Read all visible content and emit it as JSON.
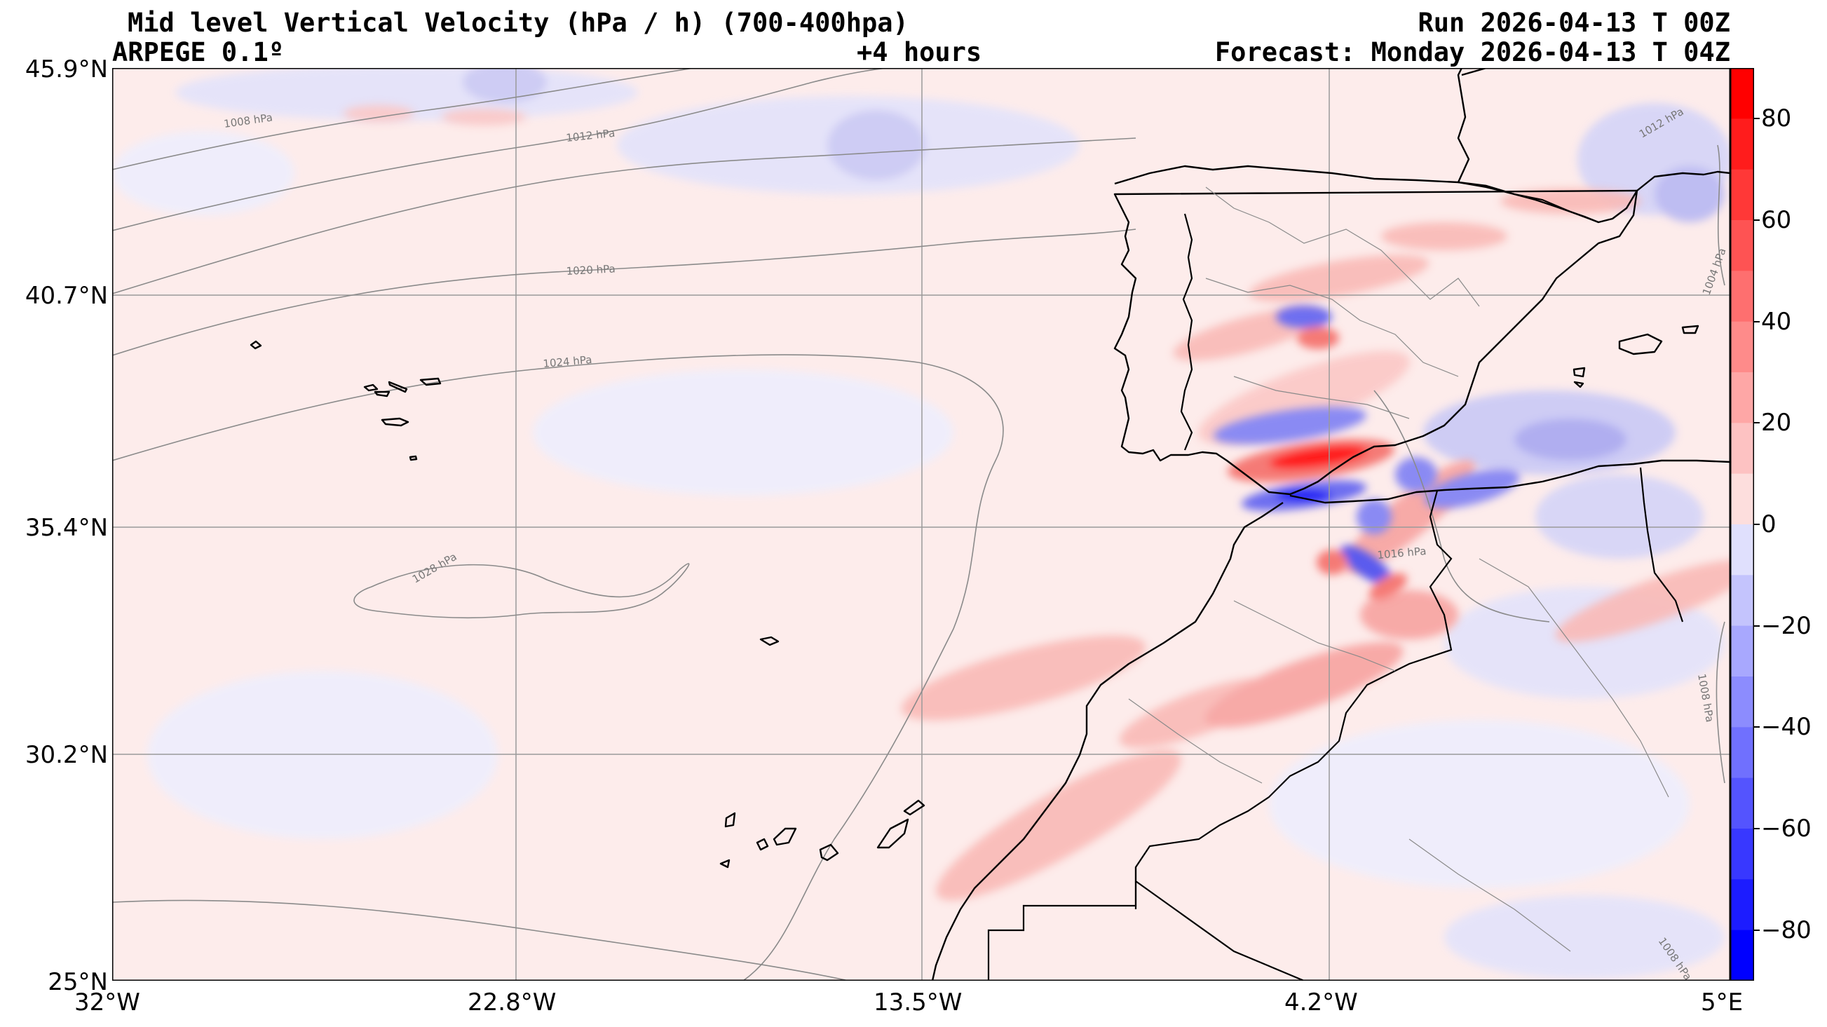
{
  "header": {
    "title": "Mid level Vertical Velocity (hPa / h)  (700-400hpa)",
    "model": "ARPEGE 0.1º",
    "lead": "+4 hours",
    "run": "Run 2026-04-13 T 00Z",
    "forecast": "Forecast: Monday 2026-04-13 T 04Z"
  },
  "axes": {
    "lat_labels": [
      "45.9°N",
      "40.7°N",
      "35.4°N",
      "30.2°N",
      "25°N"
    ],
    "lon_labels": [
      "32°W",
      "22.8°W",
      "13.5°W",
      "4.2°W",
      "5°E"
    ]
  },
  "colorbar": {
    "range": [
      -90,
      90
    ],
    "step": 10,
    "ticks": [
      80,
      60,
      40,
      20,
      0,
      -20,
      -40,
      -60,
      -80
    ],
    "tick_labels": [
      "80",
      "60",
      "40",
      "20",
      "0",
      "−20",
      "−40",
      "−60",
      "−80"
    ]
  },
  "isobars": [
    "1008 hPa",
    "1012 hPa",
    "1020 hPa",
    "1024 hPa",
    "1028 hPa",
    "1016 hPa",
    "1012 hPa",
    "1004 hPa",
    "1008 hPa",
    "1008 hPa"
  ],
  "colors": {
    "positive_max": "#ff0000",
    "negative_max": "#0000ff",
    "background_field": "#fdeceb",
    "coast": "#000000",
    "isobar": "#8a8a8a",
    "grid": "#9a9a9a"
  }
}
